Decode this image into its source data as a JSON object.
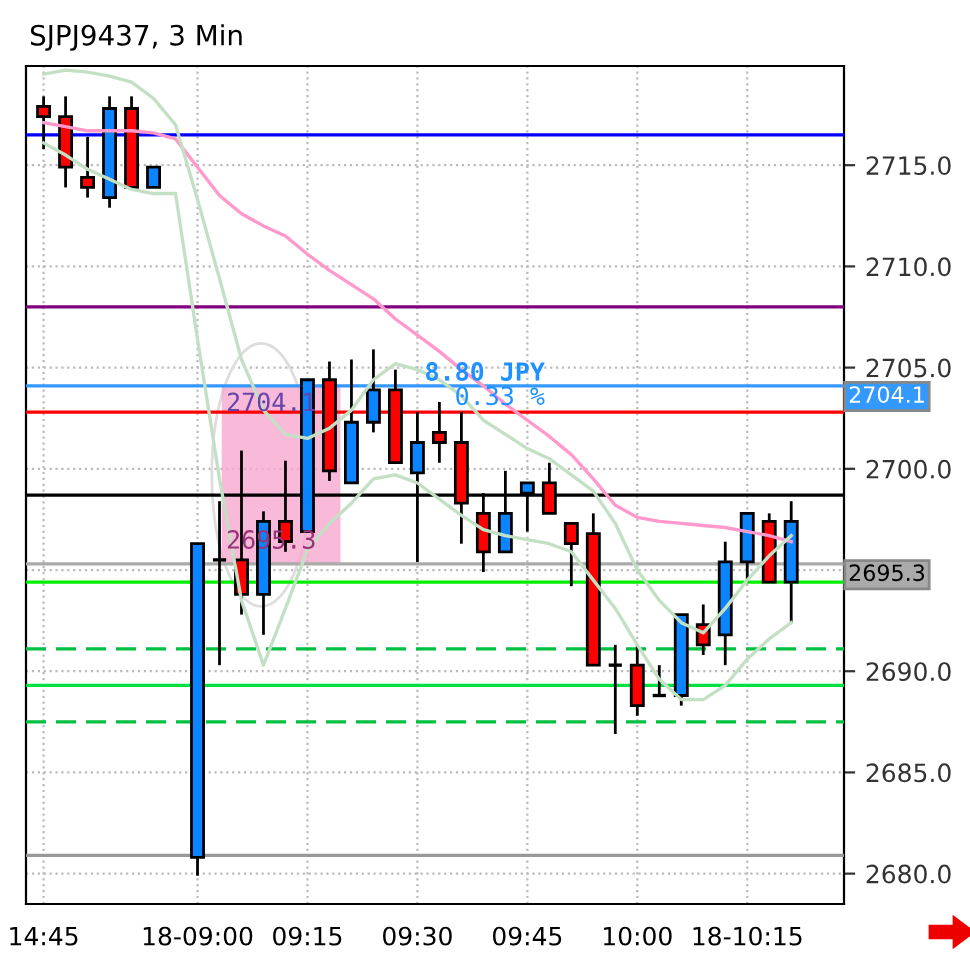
{
  "chart_data": {
    "type": "candlestick",
    "title": "SJPJ9437, 3 Min",
    "categories": [
      "14:45",
      null,
      null,
      null,
      null,
      null,
      null,
      "18-09:00",
      null,
      null,
      null,
      null,
      "09:15",
      null,
      null,
      null,
      null,
      "09:30",
      null,
      null,
      null,
      null,
      "09:45",
      null,
      null,
      null,
      null,
      "10:00",
      null,
      null,
      null,
      null,
      "18-10:15",
      null,
      null
    ],
    "ohlc": [
      [
        2717.9,
        2718.4,
        2715.8,
        2717.4
      ],
      [
        2717.4,
        2718.4,
        2713.9,
        2714.9
      ],
      [
        2714.4,
        2716.4,
        2713.4,
        2713.9
      ],
      [
        2713.4,
        2718.4,
        2712.9,
        2717.8
      ],
      [
        2717.8,
        2718.4,
        2713.9,
        2713.9
      ],
      [
        2713.9,
        2714.9,
        2713.9,
        2714.9
      ],
      null,
      [
        2680.8,
        2696.3,
        2679.9,
        2696.3
      ],
      [
        2695.5,
        2698.4,
        2690.3,
        2695.5
      ],
      [
        2695.5,
        2700.9,
        2692.8,
        2693.8
      ],
      [
        2693.8,
        2697.9,
        2691.8,
        2697.4
      ],
      [
        2697.4,
        2700.4,
        2695.9,
        2696.4
      ],
      [
        2696.9,
        2704.4,
        2696.9,
        2704.4
      ],
      [
        2704.4,
        2705.3,
        2699.4,
        2699.9
      ],
      [
        2699.3,
        2705.4,
        2699.3,
        2702.3
      ],
      [
        2702.3,
        2705.9,
        2701.8,
        2703.9
      ],
      [
        2703.9,
        2704.9,
        2700.3,
        2700.3
      ],
      [
        2699.8,
        2702.8,
        2695.4,
        2701.3
      ],
      [
        2701.8,
        2703.3,
        2700.3,
        2701.3
      ],
      [
        2701.3,
        2702.8,
        2696.3,
        2698.3
      ],
      [
        2697.8,
        2698.8,
        2694.9,
        2695.9
      ],
      [
        2695.9,
        2699.9,
        2695.9,
        2697.8
      ],
      [
        2698.8,
        2699.3,
        2696.9,
        2699.3
      ],
      [
        2699.3,
        2700.3,
        2697.8,
        2697.8
      ],
      [
        2697.3,
        2697.3,
        2694.2,
        2696.3
      ],
      [
        2696.8,
        2697.8,
        2690.3,
        2690.3
      ],
      [
        2690.3,
        2691.3,
        2686.9,
        2690.3
      ],
      [
        2690.3,
        2691.3,
        2687.8,
        2688.3
      ],
      [
        2688.8,
        2690.3,
        2688.8,
        2688.8
      ],
      [
        2688.8,
        2692.8,
        2688.3,
        2692.8
      ],
      [
        2692.3,
        2693.3,
        2690.8,
        2691.3
      ],
      [
        2691.8,
        2696.4,
        2690.3,
        2695.4
      ],
      [
        2695.4,
        2697.8,
        2694.4,
        2697.8
      ],
      [
        2697.4,
        2697.8,
        2694.4,
        2694.4
      ],
      [
        2694.4,
        2698.4,
        2692.4,
        2697.4
      ]
    ],
    "colors": [
      "#ff0000",
      "#ff0000",
      "#ff0000",
      "#0a84ff",
      "#ff0000",
      "#0a84ff",
      null,
      "#0a84ff",
      "#000000",
      "#ff0000",
      "#0a84ff",
      "#ff0000",
      "#0a84ff",
      "#ff0000",
      "#0a84ff",
      "#0a84ff",
      "#ff0000",
      "#0a84ff",
      "#ff0000",
      "#ff0000",
      "#ff0000",
      "#0a84ff",
      "#0a84ff",
      "#ff0000",
      "#ff0000",
      "#ff0000",
      "#000000",
      "#ff0000",
      "#000000",
      "#0a84ff",
      "#ff0000",
      "#0a84ff",
      "#0a84ff",
      "#ff0000",
      "#0a84ff"
    ],
    "series": [
      {
        "type": "line",
        "color": "#ff99cc",
        "values": [
          2717.1,
          2716.9,
          2716.7,
          2716.7,
          2716.7,
          2716.6,
          2716.3,
          2714.9,
          2713.5,
          2712.6,
          2712.0,
          2711.5,
          2710.6,
          2709.8,
          2709.1,
          2708.4,
          2707.4,
          2706.6,
          2705.8,
          2704.9,
          2704.1,
          2703.2,
          2702.4,
          2701.6,
          2700.7,
          2699.5,
          2698.2,
          2697.6,
          2697.4,
          2697.3,
          2697.2,
          2697.1,
          2696.9,
          2696.7,
          2696.4
        ]
      },
      {
        "type": "line",
        "color": "#c4e0c4",
        "values": [
          2719.5,
          2719.7,
          2719.6,
          2719.4,
          2719.1,
          2718.3,
          2717.0,
          2713.3,
          2709.4,
          2705.4,
          2702.9,
          2701.7,
          2701.5,
          2702.0,
          2702.9,
          2704.4,
          2705.2,
          2704.9,
          2704.4,
          2703.6,
          2702.4,
          2701.7,
          2701.0,
          2700.5,
          2699.7,
          2698.9,
          2697.3,
          2695.0,
          2693.5,
          2692.4,
          2691.9,
          2693.1,
          2694.5,
          2695.7,
          2696.7
        ]
      },
      {
        "type": "line",
        "color": "#c4e0c4",
        "values": [
          2716.1,
          2715.5,
          2714.8,
          2714.3,
          2713.8,
          2713.6,
          2713.6,
          2706.4,
          2699.5,
          2693.5,
          2690.3,
          2693.1,
          2696.0,
          2697.3,
          2698.3,
          2699.5,
          2699.7,
          2699.3,
          2698.5,
          2697.7,
          2697.0,
          2696.7,
          2696.5,
          2696.3,
          2695.9,
          2694.5,
          2693.1,
          2691.3,
          2689.6,
          2688.6,
          2688.6,
          2689.3,
          2690.6,
          2691.6,
          2692.4
        ]
      }
    ],
    "ref_lines": [
      {
        "axis": "y",
        "value": 2716.5,
        "color": "#0000ff"
      },
      {
        "axis": "y",
        "value": 2708.0,
        "color": "#800080"
      },
      {
        "axis": "y",
        "value": 2702.8,
        "color": "#ff0000"
      },
      {
        "axis": "y",
        "value": 2698.7,
        "color": "#000000"
      },
      {
        "axis": "y",
        "value": 2694.4,
        "color": "#00ee00"
      },
      {
        "axis": "y",
        "value": 2691.1,
        "color": "#00c040",
        "line_style": "dashed"
      },
      {
        "axis": "y",
        "value": 2689.3,
        "color": "#00e040"
      },
      {
        "axis": "y",
        "value": 2687.5,
        "color": "#00c040",
        "line_style": "dashed"
      },
      {
        "axis": "y",
        "value": 2680.9,
        "color": "#999999"
      },
      {
        "axis": "y",
        "value": 2704.1,
        "color": "#3399ff",
        "label": "2704.1"
      },
      {
        "axis": "y",
        "value": 2695.3,
        "color": "#aaaaaa",
        "label": "2695.3"
      }
    ],
    "annotations": [
      {
        "text": "2704.1",
        "y": 2704.1
      },
      {
        "text": "2695.3",
        "y": 2695.3
      },
      {
        "text": "8.80 JPY",
        "y": 2704.1
      },
      {
        "text": "0.33 %",
        "y": 2704.1
      }
    ],
    "ylim": [
      2678.5,
      2719.9
    ],
    "yticks": [
      {
        "value": 2680,
        "label": "2680.0"
      },
      {
        "value": 2685,
        "label": "2685.0"
      },
      {
        "value": 2690,
        "label": "2690.0"
      },
      {
        "value": 2695,
        "label": null
      },
      {
        "value": 2700,
        "label": "2700.0"
      },
      {
        "value": 2705,
        "label": "2705.0"
      },
      {
        "value": 2710,
        "label": "2710.0"
      },
      {
        "value": 2715,
        "label": "2715.0"
      }
    ],
    "grid": true
  }
}
